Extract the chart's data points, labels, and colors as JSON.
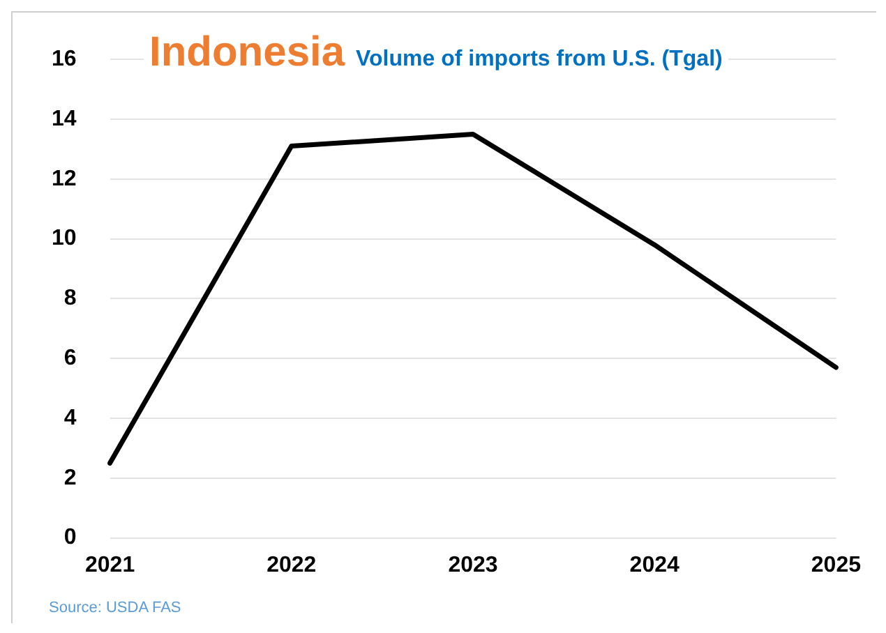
{
  "chart_data": {
    "type": "line",
    "title": "Indonesia",
    "subtitle": "Volume of imports from U.S. (Tgal)",
    "categories": [
      "2021",
      "2022",
      "2023",
      "2024",
      "2025"
    ],
    "series": [
      {
        "color": "#000000",
        "values": [
          2.5,
          13.1,
          13.5,
          9.8,
          5.7
        ]
      }
    ],
    "ylim": [
      0,
      16
    ],
    "yticks": [
      0,
      2,
      4,
      6,
      8,
      10,
      12,
      14,
      16
    ],
    "grid": "y",
    "legend": false,
    "marker": "none",
    "line_style": "solid",
    "annotations": [
      "Source: USDA FAS"
    ]
  }
}
